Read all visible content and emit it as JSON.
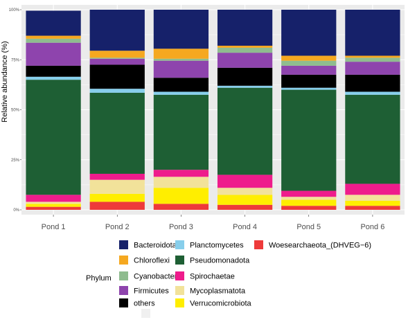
{
  "chart_data": {
    "type": "bar",
    "stacked": true,
    "ylabel": "Relative abundance (%)",
    "xlabel": "",
    "ylim": [
      0,
      100
    ],
    "yticks": [
      "0%",
      "25%",
      "50%",
      "75%",
      "100%"
    ],
    "grid": true,
    "legend_position": "bottom",
    "legend_title": "Phylum",
    "categories": [
      "Pond 1",
      "Pond 2",
      "Pond 3",
      "Pond 4",
      "Pond 5",
      "Pond 6"
    ],
    "series": [
      {
        "name": "Woesearchaeota_(DHVEG−6)",
        "color": "#ee3a3a",
        "values": [
          1.5,
          4.0,
          3.0,
          2.5,
          2.0,
          2.0
        ]
      },
      {
        "name": "Verrucomicrobiota",
        "color": "#ffee00",
        "values": [
          1.5,
          4.0,
          8.0,
          5.0,
          3.0,
          2.5
        ]
      },
      {
        "name": "Mycoplasmatota",
        "color": "#f2e29a",
        "values": [
          1.0,
          7.0,
          5.5,
          3.5,
          1.5,
          3.0
        ]
      },
      {
        "name": "Spirochaetae",
        "color": "#ee1c8c",
        "values": [
          3.5,
          3.0,
          3.5,
          6.5,
          3.0,
          5.5
        ]
      },
      {
        "name": "Pseudomonadota",
        "color": "#1e5f34",
        "values": [
          57.5,
          40.5,
          37.5,
          43.5,
          50.5,
          44.5
        ]
      },
      {
        "name": "Planctomycetes",
        "color": "#87ceeb",
        "values": [
          1.5,
          2.0,
          1.5,
          1.0,
          1.0,
          1.5
        ]
      },
      {
        "name": "others",
        "color": "#000000",
        "values": [
          5.5,
          12.0,
          7.0,
          9.0,
          6.5,
          8.5
        ]
      },
      {
        "name": "Firmicutes",
        "color": "#8e44ad",
        "values": [
          11.5,
          3.0,
          8.5,
          7.5,
          4.5,
          6.5
        ]
      },
      {
        "name": "Cyanobacteria",
        "color": "#8fbc8f",
        "values": [
          2.0,
          0.5,
          1.0,
          2.5,
          2.5,
          2.0
        ]
      },
      {
        "name": "Chloroflexi",
        "color": "#f5a820",
        "values": [
          1.5,
          3.5,
          5.0,
          1.0,
          2.5,
          1.0
        ]
      },
      {
        "name": "Bacteroidota",
        "color": "#16216a",
        "values": [
          12.5,
          20.5,
          19.5,
          18.0,
          23.0,
          23.0
        ]
      }
    ],
    "legend_order": [
      [
        "Bacteroidota",
        "Planctomycetes",
        "Woesearchaeota_(DHVEG−6)"
      ],
      [
        "Chloroflexi",
        "Pseudomonadota"
      ],
      [
        "Cyanobacteria",
        "Spirochaetae"
      ],
      [
        "Firmicutes",
        "Mycoplasmatota"
      ],
      [
        "others",
        "Verrucomicrobiota"
      ]
    ]
  }
}
